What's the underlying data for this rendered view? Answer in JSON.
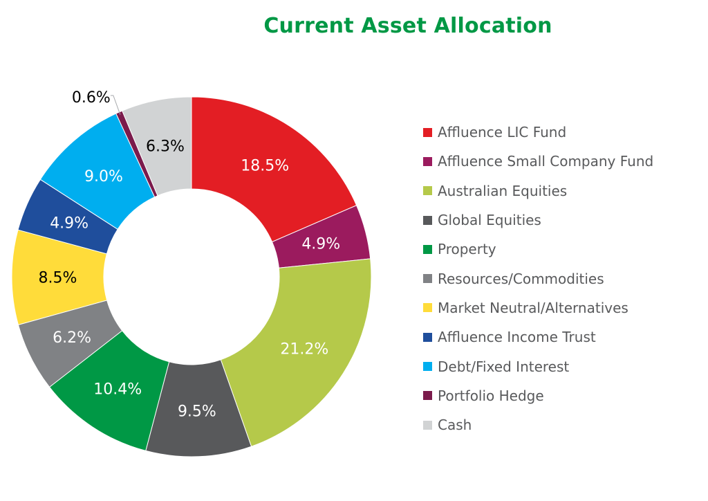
{
  "chart_data": {
    "type": "pie",
    "variant": "donut",
    "title": "Current Asset Allocation",
    "unit": "%",
    "legend_position": "right",
    "slices": [
      {
        "label": "Affluence LIC Fund",
        "value": 18.5,
        "display": "18.5%",
        "color": "#e31e24",
        "text_color": "#ffffff"
      },
      {
        "label": "Affluence Small Company Fund",
        "value": 4.9,
        "display": "4.9%",
        "color": "#9b1b5e",
        "text_color": "#ffffff"
      },
      {
        "label": "Australian Equities",
        "value": 21.2,
        "display": "21.2%",
        "color": "#b5c94a",
        "text_color": "#ffffff"
      },
      {
        "label": "Global Equities",
        "value": 9.5,
        "display": "9.5%",
        "color": "#58595b",
        "text_color": "#ffffff"
      },
      {
        "label": "Property",
        "value": 10.4,
        "display": "10.4%",
        "color": "#009845",
        "text_color": "#ffffff"
      },
      {
        "label": "Resources/Commodities",
        "value": 6.2,
        "display": "6.2%",
        "color": "#808285",
        "text_color": "#ffffff"
      },
      {
        "label": "Market Neutral/Alternatives",
        "value": 8.5,
        "display": "8.5%",
        "color": "#ffdc3a",
        "text_color": "#000000"
      },
      {
        "label": "Affluence Income Trust",
        "value": 4.9,
        "display": "4.9%",
        "color": "#1f4e9c",
        "text_color": "#ffffff"
      },
      {
        "label": "Debt/Fixed Interest",
        "value": 9.0,
        "display": "9.0%",
        "color": "#00aeef",
        "text_color": "#ffffff"
      },
      {
        "label": "Portfolio Hedge",
        "value": 0.6,
        "display": "0.6%",
        "color": "#7b1b4c",
        "text_color": "#000000",
        "label_outside": true
      },
      {
        "label": "Cash",
        "value": 6.3,
        "display": "6.3%",
        "color": "#d1d3d4",
        "text_color": "#000000"
      }
    ]
  }
}
